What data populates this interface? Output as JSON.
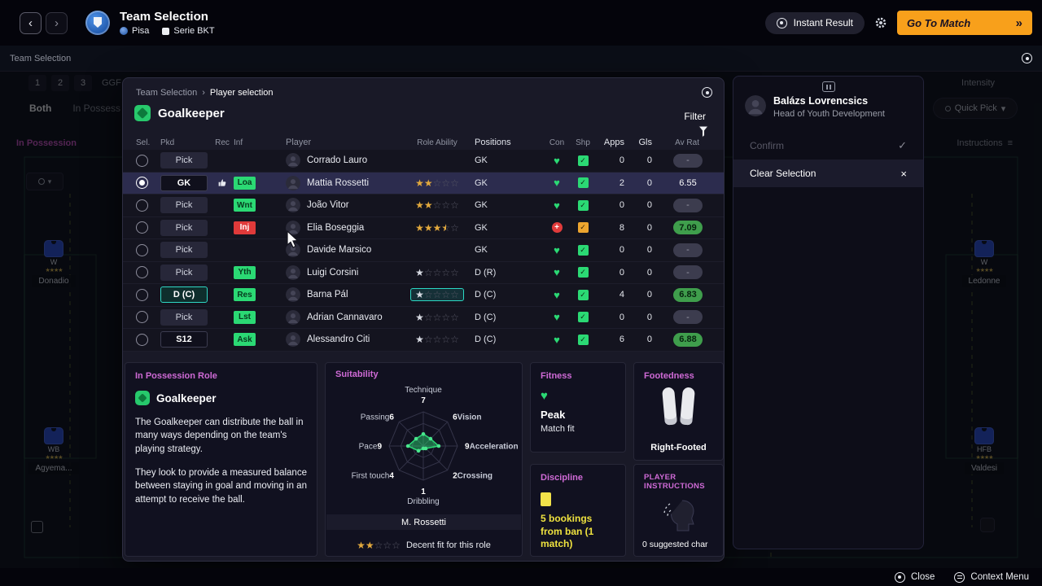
{
  "colors": {
    "accent_pink": "#cf6ad6",
    "accent_teal": "#2fd7c4",
    "green": "#2bd974",
    "orange_button": "#f8a01b",
    "rating_green": "#3f9e4c",
    "discipline_yellow": "#efe23f"
  },
  "top_bar": {
    "title": "Team Selection",
    "club": "Pisa",
    "league": "Serie BKT",
    "instant_result_label": "Instant Result",
    "go_to_match_label": "Go To Match"
  },
  "sub_bar": {
    "label": "Team Selection"
  },
  "background": {
    "squad_tabs": [
      "1",
      "2",
      "3"
    ],
    "squad_tab_extra": "GGF",
    "phase_tabs": [
      "Both",
      "In Possess"
    ],
    "section_label": "In Possession",
    "intensity_label": "Intensity",
    "quick_pick_label": "Quick Pick",
    "instructions_label": "Instructions",
    "pitch_players": [
      {
        "pos": "W",
        "name": "Donadio",
        "stars": "★★★★"
      },
      {
        "pos": "W",
        "name": "Ledonne",
        "stars": "★★★★"
      },
      {
        "pos": "WB",
        "name": "Agyema...",
        "stars": "★★★★"
      },
      {
        "pos": "HFB",
        "name": "Valdesi",
        "stars": "★★★★"
      }
    ]
  },
  "modal": {
    "breadcrumb_parent": "Team Selection",
    "breadcrumb_current": "Player selection",
    "position_title": "Goalkeeper",
    "filter_label": "Filter",
    "table": {
      "columns": [
        "Sel.",
        "Pkd",
        "Rec",
        "Inf",
        "Player",
        "Role Ability",
        "Positions",
        "Con",
        "Shp",
        "Apps",
        "Gls",
        "Av Rat"
      ],
      "rows": [
        {
          "selected": false,
          "pkd": "Pick",
          "pkd_variant": "pick",
          "rec": "",
          "inf": "",
          "inf_variant": "",
          "player": "Corrado Lauro",
          "stars": 0,
          "star_tone": "gold",
          "star_highlight": false,
          "positions": "GK",
          "con": "fit",
          "shp": "good",
          "apps": "0",
          "gls": "0",
          "av_rat": "-",
          "av_variant": "dash",
          "highlight": false
        },
        {
          "selected": true,
          "pkd": "GK",
          "pkd_variant": "assigned",
          "rec": "thumb",
          "inf": "Loa",
          "inf_variant": "green",
          "player": "Mattia Rossetti",
          "stars": 2,
          "star_tone": "gold",
          "star_highlight": false,
          "positions": "GK",
          "con": "fit",
          "shp": "good",
          "apps": "2",
          "gls": "0",
          "av_rat": "6.55",
          "av_variant": "plain",
          "highlight": true
        },
        {
          "selected": false,
          "pkd": "Pick",
          "pkd_variant": "pick",
          "rec": "",
          "inf": "Wnt",
          "inf_variant": "green",
          "player": "João Vitor",
          "stars": 2,
          "star_tone": "gold",
          "star_highlight": false,
          "positions": "GK",
          "con": "fit",
          "shp": "good",
          "apps": "0",
          "gls": "0",
          "av_rat": "-",
          "av_variant": "dash",
          "highlight": false
        },
        {
          "selected": false,
          "pkd": "Pick",
          "pkd_variant": "pick",
          "rec": "",
          "inf": "Inj",
          "inf_variant": "red",
          "player": "Elia Boseggia",
          "stars": 3.5,
          "star_tone": "gold",
          "star_highlight": false,
          "positions": "GK",
          "con": "injured",
          "shp": "warn",
          "apps": "8",
          "gls": "0",
          "av_rat": "7.09",
          "av_variant": "green",
          "highlight": false
        },
        {
          "selected": false,
          "pkd": "Pick",
          "pkd_variant": "pick",
          "rec": "",
          "inf": "",
          "inf_variant": "",
          "player": "Davide Marsico",
          "stars": 0,
          "star_tone": "gold",
          "star_highlight": false,
          "positions": "GK",
          "con": "fit",
          "shp": "good",
          "apps": "0",
          "gls": "0",
          "av_rat": "-",
          "av_variant": "dash",
          "highlight": false
        },
        {
          "selected": false,
          "pkd": "Pick",
          "pkd_variant": "pick",
          "rec": "",
          "inf": "Yth",
          "inf_variant": "green",
          "player": "Luigi Corsini",
          "stars": 1,
          "star_tone": "silver",
          "star_highlight": false,
          "positions": "D (R)",
          "con": "fit",
          "shp": "good",
          "apps": "0",
          "gls": "0",
          "av_rat": "-",
          "av_variant": "dash",
          "highlight": false
        },
        {
          "selected": false,
          "pkd": "D (C)",
          "pkd_variant": "teal",
          "rec": "",
          "inf": "Res",
          "inf_variant": "green",
          "player": "Barna Pál",
          "stars": 1,
          "star_tone": "silver",
          "star_highlight": true,
          "positions": "D (C)",
          "con": "fit",
          "shp": "good",
          "apps": "4",
          "gls": "0",
          "av_rat": "6.83",
          "av_variant": "green",
          "highlight": false
        },
        {
          "selected": false,
          "pkd": "Pick",
          "pkd_variant": "pick",
          "rec": "",
          "inf": "Lst",
          "inf_variant": "green",
          "player": "Adrian Cannavaro",
          "stars": 1,
          "star_tone": "silver",
          "star_highlight": false,
          "positions": "D (C)",
          "con": "fit",
          "shp": "good",
          "apps": "0",
          "gls": "0",
          "av_rat": "-",
          "av_variant": "dash",
          "highlight": false
        },
        {
          "selected": false,
          "pkd": "S12",
          "pkd_variant": "assigned",
          "rec": "",
          "inf": "Ask",
          "inf_variant": "green",
          "player": "Alessandro Citi",
          "stars": 1,
          "star_tone": "silver",
          "star_highlight": false,
          "positions": "D (C)",
          "con": "fit",
          "shp": "good",
          "apps": "6",
          "gls": "0",
          "av_rat": "6.88",
          "av_variant": "green",
          "highlight": false
        }
      ]
    },
    "role_panel": {
      "title": "In Possession Role",
      "role": "Goalkeeper",
      "p1": "The Goalkeeper can distribute the ball in many ways depending on the team's playing strategy.",
      "p2": "They look to provide a measured balance between staying in goal and moving in an attempt to receive the ball."
    },
    "suitability_panel": {
      "title": "Suitability",
      "player": "M. Rossetti",
      "fit_stars": 2,
      "fit_text": "Decent fit for this role"
    },
    "fitness_panel": {
      "title": "Fitness",
      "status": "Peak",
      "sub": "Match fit"
    },
    "footedness_panel": {
      "title": "Footedness",
      "value": "Right-Footed"
    },
    "discipline_panel": {
      "title": "Discipline",
      "text": "5 bookings from ban (1 match)"
    },
    "instructions_panel": {
      "title": "PLAYER INSTRUCTIONS",
      "text": "0 suggested char"
    }
  },
  "chart_data": {
    "type": "radar",
    "title": "Suitability",
    "categories": [
      "Technique",
      "Vision",
      "Acceleration",
      "Crossing",
      "Dribbling",
      "First touch",
      "Pace",
      "Passing"
    ],
    "values": [
      7,
      6,
      9,
      2,
      1,
      4,
      9,
      6
    ],
    "max": 20,
    "legend": "M. Rossetti"
  },
  "context_panel": {
    "name": "Balázs Lovrencsics",
    "role": "Head of Youth Development",
    "items": [
      {
        "label": "Confirm",
        "icon": "check",
        "enabled": false
      },
      {
        "label": "Clear Selection",
        "icon": "close",
        "enabled": true
      }
    ]
  },
  "bottom_bar": {
    "close_label": "Close",
    "context_menu_label": "Context Menu"
  }
}
